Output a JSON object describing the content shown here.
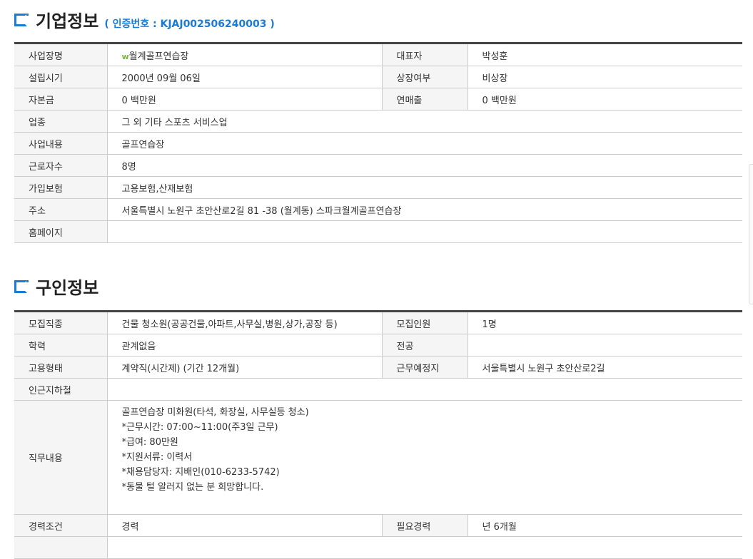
{
  "company": {
    "title": "기업정보",
    "cert": "( 인증번호 : KJAJ002506240003 )",
    "rows": [
      [
        "사업장명",
        "월계골프연습장",
        "대표자",
        "박성훈"
      ],
      [
        "설립시기",
        "2000년 09월 06일",
        "상장여부",
        "비상장"
      ],
      [
        "자본금",
        "0 백만원",
        "연매출",
        "0 백만원"
      ],
      [
        "업종",
        "그 외 기타 스포츠 서비스업"
      ],
      [
        "사업내용",
        "골프연습장"
      ],
      [
        "근로자수",
        "8명"
      ],
      [
        "가입보험",
        "고용보험,산재보험"
      ],
      [
        "주소",
        "서울특별시 노원구 초안산로2길 81 -38 (월계동) 스파크월계골프연습장"
      ],
      [
        "홈페이지",
        ""
      ]
    ]
  },
  "job": {
    "title": "구인정보",
    "rows": [
      [
        "모집직종",
        "건물 청소원(공공건물,아파트,사무실,병원,상가,공장 등)",
        "모집인원",
        "1명"
      ],
      [
        "학력",
        "관계없음",
        "전공",
        ""
      ],
      [
        "고용형태",
        "계약직(시간제) (기간 12개월)",
        "근무예정지",
        "서울특별시 노원구 초안산로2길"
      ],
      [
        "인근지하철",
        ""
      ]
    ],
    "duty_label": "직무내용",
    "duty_lines": [
      "골프연습장 미화원(타석, 화장실, 사무실등 청소)",
      "*근무시간: 07:00~11:00(주3일 근무)",
      "*급여: 80만원",
      "*지원서류: 이력서",
      "*채용담당자: 지배인(010-6233-5742)",
      "*동물 털 알러지 없는 분 희망합니다."
    ],
    "career": [
      "경력조건",
      "경력",
      "필요경력",
      "년 6개월"
    ]
  }
}
